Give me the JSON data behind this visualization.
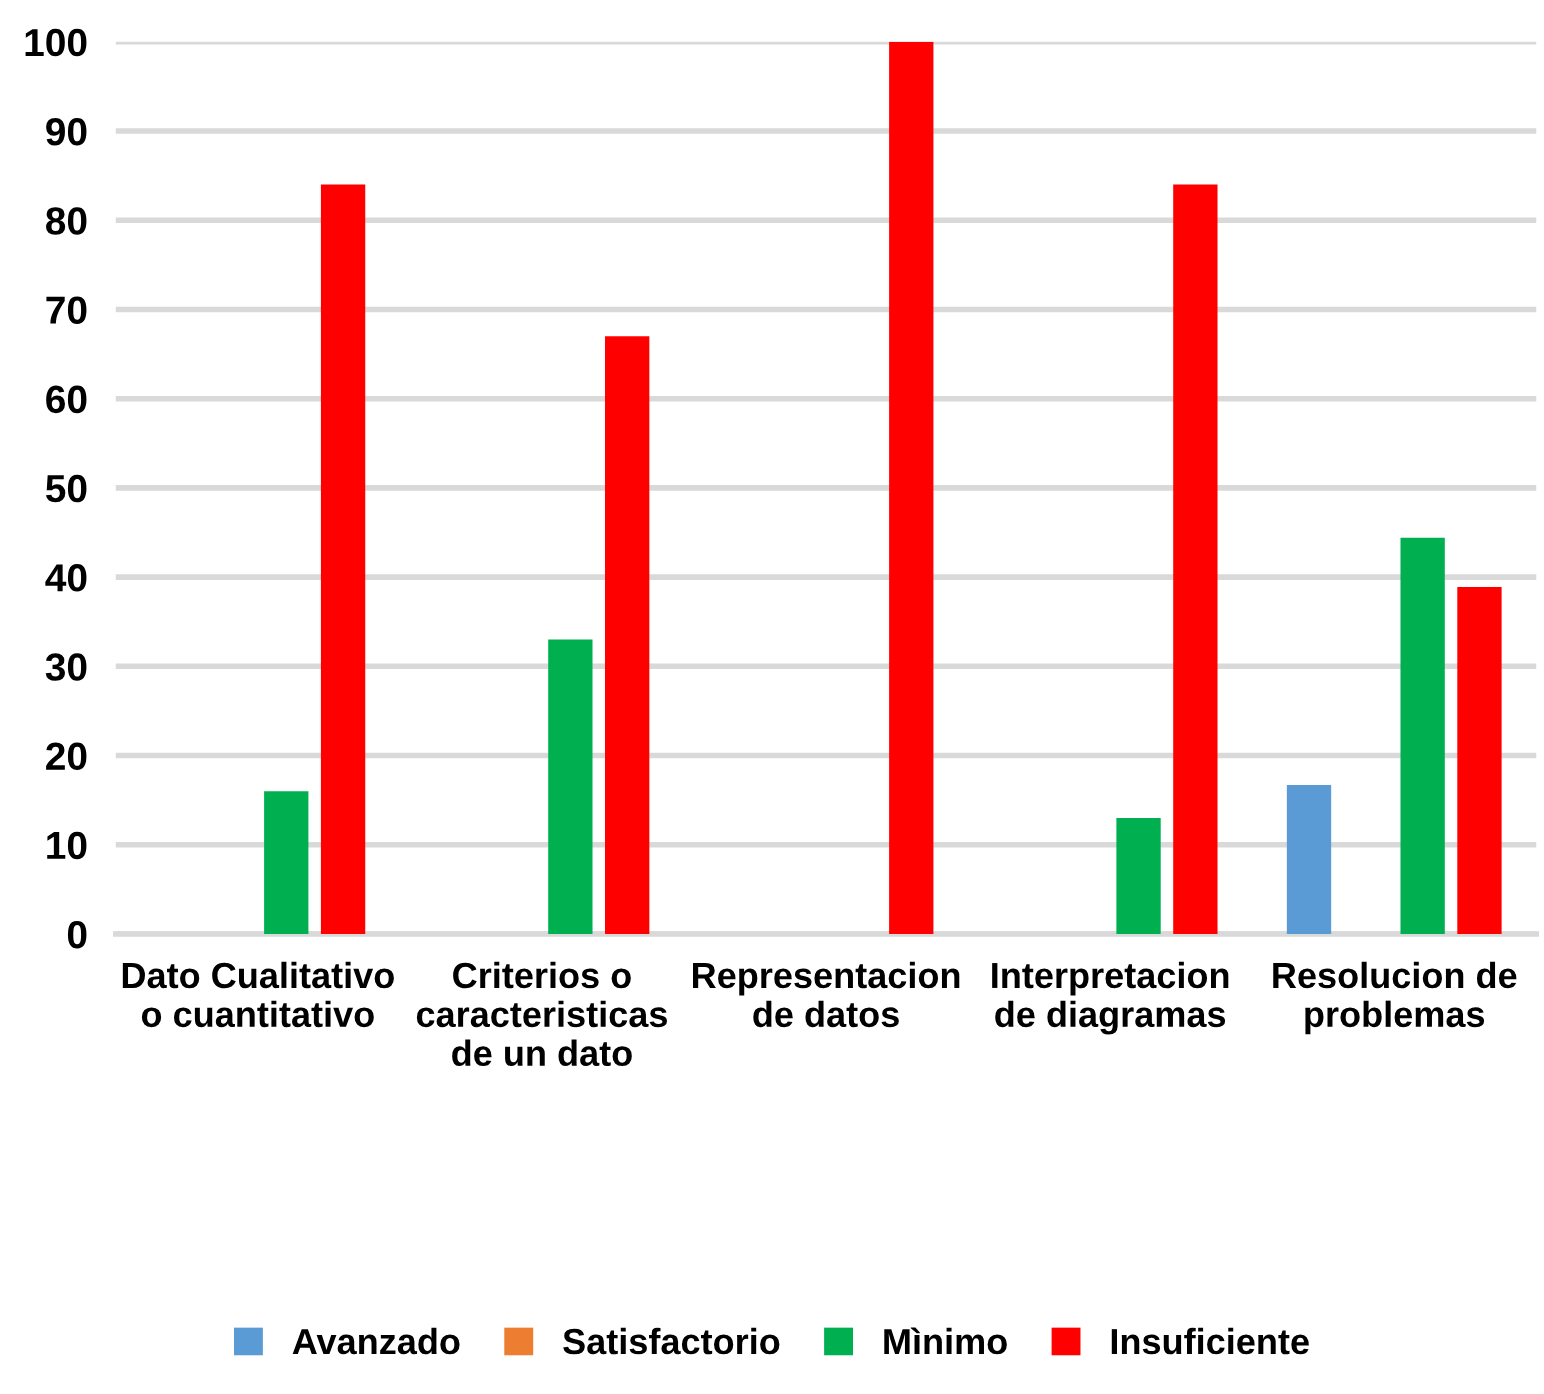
{
  "chart_data": {
    "type": "bar",
    "categories": [
      "Dato Cualitativo\no cuantitativo",
      "Criterios o\ncaracteristicas\nde un dato",
      "Representacion\nde datos",
      "Interpretacion\nde diagramas",
      "Resolucion de\nproblemas"
    ],
    "series": [
      {
        "name": "Avanzado",
        "color": "#5b9bd5",
        "values": [
          0,
          0,
          0,
          0,
          16.7
        ]
      },
      {
        "name": "Satisfactorio",
        "color": "#ed7d31",
        "values": [
          0,
          0,
          0,
          0,
          0
        ]
      },
      {
        "name": "Mìnimo",
        "color": "#00b050",
        "values": [
          16,
          33,
          0,
          13,
          44.4
        ]
      },
      {
        "name": "Insuficiente",
        "color": "#ff0000",
        "values": [
          84,
          67,
          100,
          84,
          38.9
        ]
      }
    ],
    "ylim": [
      0,
      100
    ],
    "yticks": [
      0,
      10,
      20,
      30,
      40,
      50,
      60,
      70,
      80,
      90,
      100
    ],
    "grid": "y",
    "legend": "bottom"
  }
}
